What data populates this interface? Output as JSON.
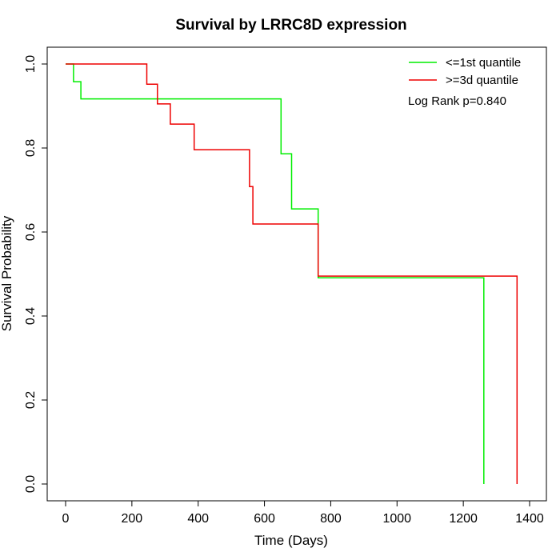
{
  "chart_data": {
    "type": "line",
    "title": "Survival by LRRC8D expression",
    "xlabel": "Time (Days)",
    "ylabel": "Survival Probability",
    "xlim": [
      0,
      1400
    ],
    "ylim": [
      0,
      1.0
    ],
    "x_ticks": [
      0,
      200,
      400,
      600,
      800,
      1000,
      1200,
      1400
    ],
    "y_ticks": [
      0.0,
      0.2,
      0.4,
      0.6,
      0.8,
      1.0
    ],
    "x_tick_labels": [
      "0",
      "200",
      "400",
      "600",
      "800",
      "1000",
      "1200",
      "1400"
    ],
    "y_tick_labels": [
      "0.0",
      "0.2",
      "0.4",
      "0.6",
      "0.8",
      "1.0"
    ],
    "legend_position": "top-right",
    "annotation": "Log Rank p=0.840",
    "grid": false,
    "series": [
      {
        "name": "<=1st quantile",
        "color": "#00ee00",
        "step": true,
        "points": [
          [
            0,
            1.0
          ],
          [
            24,
            1.0
          ],
          [
            24,
            0.958
          ],
          [
            46,
            0.958
          ],
          [
            46,
            0.917
          ],
          [
            650,
            0.917
          ],
          [
            650,
            0.786
          ],
          [
            682,
            0.786
          ],
          [
            682,
            0.655
          ],
          [
            762,
            0.655
          ],
          [
            762,
            0.491
          ],
          [
            1262,
            0.491
          ],
          [
            1262,
            0.0
          ]
        ]
      },
      {
        "name": ">=3d quantile",
        "color": "#ee0000",
        "step": true,
        "points": [
          [
            0,
            1.0
          ],
          [
            245,
            1.0
          ],
          [
            245,
            0.952
          ],
          [
            277,
            0.952
          ],
          [
            277,
            0.905
          ],
          [
            316,
            0.905
          ],
          [
            316,
            0.857
          ],
          [
            388,
            0.857
          ],
          [
            388,
            0.796
          ],
          [
            555,
            0.796
          ],
          [
            555,
            0.708
          ],
          [
            565,
            0.708
          ],
          [
            565,
            0.619
          ],
          [
            762,
            0.619
          ],
          [
            762,
            0.495
          ],
          [
            1362,
            0.495
          ],
          [
            1362,
            0.0
          ]
        ]
      }
    ]
  }
}
